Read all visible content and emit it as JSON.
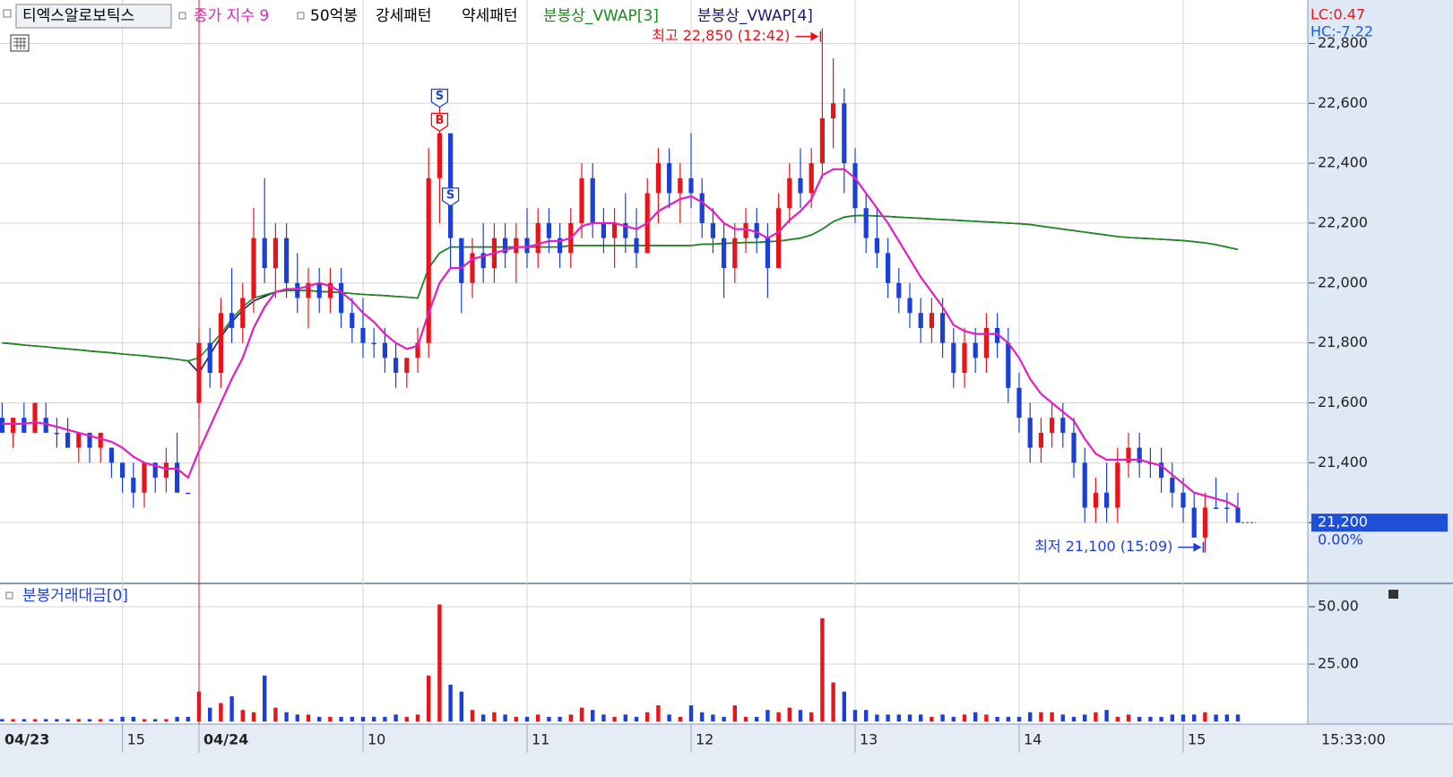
{
  "chart_data": {
    "type": "candlestick",
    "symbol": "티엑스알로보틱스",
    "indicators": [
      "50억봉",
      "강세패턴",
      "약세패턴"
    ],
    "lc_label": "LC:0.47",
    "hc_label": "HC:-7.22",
    "up_color": "#e8141c",
    "down_color": "#1c3fd6",
    "grid": true,
    "categories": [
      "04/23",
      null,
      null,
      null,
      null,
      null,
      null,
      null,
      null,
      null,
      null,
      "15",
      null,
      null,
      null,
      null,
      null,
      null,
      "04/24",
      null,
      null,
      null,
      null,
      null,
      null,
      null,
      null,
      null,
      null,
      null,
      null,
      null,
      null,
      "10",
      null,
      null,
      null,
      null,
      null,
      null,
      null,
      null,
      null,
      null,
      null,
      null,
      null,
      null,
      "11",
      null,
      null,
      null,
      null,
      null,
      null,
      null,
      null,
      null,
      null,
      null,
      null,
      null,
      null,
      "12",
      null,
      null,
      null,
      null,
      null,
      null,
      null,
      null,
      null,
      null,
      null,
      null,
      null,
      null,
      "13",
      null,
      null,
      null,
      null,
      null,
      null,
      null,
      null,
      null,
      null,
      null,
      null,
      null,
      null,
      "14",
      null,
      null,
      null,
      null,
      null,
      null,
      null,
      null,
      null,
      null,
      null,
      null,
      null,
      null,
      "15",
      null,
      null,
      null,
      null,
      null
    ],
    "ohlc": [
      [
        21550,
        21600,
        21500,
        21500
      ],
      [
        21500,
        21550,
        21450,
        21550
      ],
      [
        21550,
        21600,
        21500,
        21500
      ],
      [
        21500,
        21600,
        21500,
        21600
      ],
      [
        21550,
        21600,
        21500,
        21500
      ],
      [
        21500,
        21550,
        21450,
        21500
      ],
      [
        21500,
        21550,
        21450,
        21450
      ],
      [
        21450,
        21500,
        21400,
        21500
      ],
      [
        21500,
        21500,
        21400,
        21450
      ],
      [
        21450,
        21500,
        21400,
        21500
      ],
      [
        21450,
        21450,
        21350,
        21400
      ],
      [
        21400,
        21400,
        21300,
        21350
      ],
      [
        21350,
        21400,
        21250,
        21300
      ],
      [
        21300,
        21400,
        21250,
        21400
      ],
      [
        21400,
        21400,
        21300,
        21350
      ],
      [
        21350,
        21450,
        21300,
        21400
      ],
      [
        21400,
        21500,
        21300,
        21300
      ],
      [
        21300,
        21300,
        21300,
        21300
      ],
      [
        21600,
        21850,
        21550,
        21800
      ],
      [
        21800,
        21850,
        21650,
        21700
      ],
      [
        21700,
        21950,
        21650,
        21900
      ],
      [
        21900,
        22050,
        21800,
        21850
      ],
      [
        21850,
        22000,
        21800,
        21950
      ],
      [
        21950,
        22250,
        21900,
        22150
      ],
      [
        22150,
        22350,
        22000,
        22050
      ],
      [
        22050,
        22200,
        21950,
        22150
      ],
      [
        22150,
        22200,
        21950,
        22000
      ],
      [
        22000,
        22100,
        21900,
        21950
      ],
      [
        21950,
        22050,
        21850,
        22000
      ],
      [
        22000,
        22050,
        21900,
        21950
      ],
      [
        21950,
        22050,
        21900,
        22000
      ],
      [
        22000,
        22050,
        21850,
        21900
      ],
      [
        21900,
        21950,
        21800,
        21850
      ],
      [
        21850,
        21950,
        21750,
        21800
      ],
      [
        21800,
        21850,
        21750,
        21800
      ],
      [
        21800,
        21850,
        21700,
        21750
      ],
      [
        21750,
        21800,
        21650,
        21700
      ],
      [
        21700,
        21750,
        21650,
        21750
      ],
      [
        21750,
        21850,
        21700,
        21800
      ],
      [
        21800,
        22450,
        21750,
        22350
      ],
      [
        22350,
        22650,
        22200,
        22500
      ],
      [
        22500,
        22500,
        22050,
        22150
      ],
      [
        22150,
        22150,
        21900,
        22000
      ],
      [
        22000,
        22150,
        21950,
        22100
      ],
      [
        22100,
        22200,
        22000,
        22050
      ],
      [
        22050,
        22200,
        22000,
        22150
      ],
      [
        22150,
        22200,
        22050,
        22100
      ],
      [
        22100,
        22200,
        22000,
        22150
      ],
      [
        22150,
        22250,
        22050,
        22100
      ],
      [
        22100,
        22250,
        22050,
        22200
      ],
      [
        22200,
        22250,
        22100,
        22150
      ],
      [
        22150,
        22200,
        22050,
        22100
      ],
      [
        22100,
        22250,
        22050,
        22200
      ],
      [
        22200,
        22400,
        22150,
        22350
      ],
      [
        22350,
        22400,
        22150,
        22200
      ],
      [
        22200,
        22250,
        22100,
        22150
      ],
      [
        22150,
        22250,
        22050,
        22200
      ],
      [
        22200,
        22300,
        22100,
        22150
      ],
      [
        22150,
        22250,
        22050,
        22100
      ],
      [
        22100,
        22350,
        22100,
        22300
      ],
      [
        22300,
        22450,
        22200,
        22400
      ],
      [
        22400,
        22450,
        22250,
        22300
      ],
      [
        22300,
        22400,
        22200,
        22350
      ],
      [
        22350,
        22500,
        22250,
        22300
      ],
      [
        22300,
        22350,
        22150,
        22200
      ],
      [
        22200,
        22250,
        22100,
        22150
      ],
      [
        22150,
        22200,
        21950,
        22050
      ],
      [
        22050,
        22200,
        22000,
        22150
      ],
      [
        22150,
        22250,
        22100,
        22200
      ],
      [
        22200,
        22250,
        22100,
        22150
      ],
      [
        22150,
        22200,
        21950,
        22050
      ],
      [
        22050,
        22300,
        22050,
        22250
      ],
      [
        22250,
        22400,
        22200,
        22350
      ],
      [
        22350,
        22450,
        22250,
        22300
      ],
      [
        22300,
        22450,
        22250,
        22400
      ],
      [
        22400,
        22850,
        22350,
        22550
      ],
      [
        22550,
        22750,
        22450,
        22600
      ],
      [
        22600,
        22650,
        22300,
        22400
      ],
      [
        22400,
        22450,
        22200,
        22250
      ],
      [
        22250,
        22300,
        22100,
        22150
      ],
      [
        22150,
        22250,
        22050,
        22100
      ],
      [
        22100,
        22150,
        21950,
        22000
      ],
      [
        22000,
        22050,
        21900,
        21950
      ],
      [
        21950,
        22000,
        21850,
        21900
      ],
      [
        21900,
        21950,
        21800,
        21850
      ],
      [
        21850,
        21950,
        21800,
        21900
      ],
      [
        21900,
        21950,
        21750,
        21800
      ],
      [
        21800,
        21850,
        21650,
        21700
      ],
      [
        21700,
        21850,
        21650,
        21800
      ],
      [
        21800,
        21850,
        21700,
        21750
      ],
      [
        21750,
        21900,
        21700,
        21850
      ],
      [
        21850,
        21900,
        21750,
        21800
      ],
      [
        21800,
        21850,
        21600,
        21650
      ],
      [
        21650,
        21700,
        21500,
        21550
      ],
      [
        21550,
        21600,
        21400,
        21450
      ],
      [
        21450,
        21550,
        21400,
        21500
      ],
      [
        21500,
        21600,
        21450,
        21550
      ],
      [
        21550,
        21600,
        21450,
        21500
      ],
      [
        21500,
        21550,
        21350,
        21400
      ],
      [
        21400,
        21450,
        21200,
        21250
      ],
      [
        21250,
        21350,
        21200,
        21300
      ],
      [
        21300,
        21400,
        21200,
        21250
      ],
      [
        21250,
        21450,
        21200,
        21400
      ],
      [
        21400,
        21500,
        21350,
        21450
      ],
      [
        21450,
        21500,
        21350,
        21400
      ],
      [
        21400,
        21450,
        21350,
        21400
      ],
      [
        21400,
        21450,
        21300,
        21350
      ],
      [
        21350,
        21400,
        21250,
        21300
      ],
      [
        21300,
        21350,
        21200,
        21250
      ],
      [
        21250,
        21300,
        21150,
        21150
      ],
      [
        21150,
        21300,
        21100,
        21250
      ],
      [
        21250,
        21350,
        21250,
        21250
      ],
      [
        21250,
        21300,
        21200,
        21250
      ],
      [
        21250,
        21300,
        21200,
        21200
      ]
    ],
    "series": [
      {
        "name": "종가 지수 9",
        "color": "#e020c0",
        "values": [
          21530,
          21530,
          21530,
          21535,
          21530,
          21520,
          21510,
          21500,
          21490,
          21480,
          21470,
          21450,
          21420,
          21400,
          21390,
          21380,
          21380,
          21350,
          21440,
          21520,
          21600,
          21680,
          21750,
          21850,
          21920,
          21970,
          21980,
          21980,
          21990,
          22000,
          21990,
          21970,
          21940,
          21900,
          21870,
          21830,
          21800,
          21780,
          21790,
          21900,
          22000,
          22050,
          22050,
          22080,
          22090,
          22100,
          22110,
          22120,
          22120,
          22130,
          22140,
          22140,
          22150,
          22190,
          22200,
          22200,
          22200,
          22190,
          22180,
          22200,
          22240,
          22260,
          22280,
          22290,
          22270,
          22240,
          22200,
          22180,
          22180,
          22170,
          22150,
          22170,
          22210,
          22240,
          22280,
          22360,
          22380,
          22380,
          22350,
          22300,
          22250,
          22200,
          22140,
          22080,
          22020,
          21970,
          21920,
          21860,
          21840,
          21830,
          21830,
          21830,
          21800,
          21750,
          21680,
          21630,
          21600,
          21570,
          21540,
          21480,
          21430,
          21410,
          21410,
          21410,
          21410,
          21400,
          21390,
          21360,
          21330,
          21300,
          21290,
          21280,
          21270,
          21250
        ]
      },
      {
        "name": "분봉상_VWAP[3]",
        "color": "#1b8a1b",
        "values": [
          21800,
          21797,
          21793,
          21790,
          21787,
          21783,
          21780,
          21777,
          21773,
          21770,
          21767,
          21763,
          21760,
          21757,
          21753,
          21750,
          21745,
          21740,
          21750,
          21790,
          21830,
          21880,
          21920,
          21950,
          21960,
          21970,
          21975,
          21975,
          21975,
          21972,
          21970,
          21968,
          21965,
          21962,
          21960,
          21958,
          21955,
          21953,
          21950,
          22050,
          22100,
          22120,
          22120,
          22120,
          22120,
          22120,
          22120,
          22120,
          22120,
          22120,
          22120,
          22120,
          22125,
          22125,
          22125,
          22125,
          22125,
          22125,
          22125,
          22125,
          22125,
          22125,
          22125,
          22125,
          22130,
          22130,
          22132,
          22134,
          22135,
          22136,
          22138,
          22140,
          22145,
          22150,
          22160,
          22180,
          22205,
          22220,
          22225,
          22225,
          22224,
          22222,
          22220,
          22218,
          22216,
          22214,
          22212,
          22210,
          22208,
          22206,
          22204,
          22202,
          22200,
          22198,
          22195,
          22190,
          22185,
          22180,
          22175,
          22170,
          22165,
          22160,
          22155,
          22152,
          22150,
          22148,
          22146,
          22144,
          22142,
          22138,
          22134,
          22128,
          22120,
          22112
        ]
      },
      {
        "name": "분봉상_VWAP[4]",
        "color": "#1a1a6e",
        "values": [
          21800,
          21797,
          21793,
          21790,
          21787,
          21783,
          21780,
          21777,
          21773,
          21770,
          21767,
          21763,
          21760,
          21757,
          21753,
          21750,
          21745,
          21740,
          21700,
          21760,
          21820,
          21870,
          21910,
          21940,
          21955,
          21970,
          21975,
          21975,
          21975,
          21972,
          21970,
          21968,
          21965,
          21962,
          21960,
          21958,
          21955,
          21953,
          21950,
          22050,
          22100,
          22120,
          22120,
          22120,
          22120,
          22120,
          22120,
          22120,
          22120,
          22120,
          22120,
          22120,
          22125,
          22125,
          22125,
          22125,
          22125,
          22125,
          22125,
          22125,
          22125,
          22125,
          22125,
          22125,
          22130,
          22130,
          22132,
          22134,
          22135,
          22136,
          22138,
          22140,
          22145,
          22150,
          22160,
          22180,
          22205,
          22220,
          22225,
          22225,
          22224,
          22222,
          22220,
          22218,
          22216,
          22214,
          22212,
          22210,
          22208,
          22206,
          22204,
          22202,
          22200,
          22198,
          22195,
          22190,
          22185,
          22180,
          22175,
          22170,
          22165,
          22160,
          22155,
          22152,
          22150,
          22148,
          22146,
          22144,
          22142,
          22138,
          22134,
          22128,
          22120,
          22112
        ]
      }
    ],
    "ylim": [
      21000,
      22945
    ],
    "yticks": [
      {
        "value": 21200,
        "label": "21,200"
      },
      {
        "value": 21400,
        "label": "21,400"
      },
      {
        "value": 21600,
        "label": "21,600"
      },
      {
        "value": 21800,
        "label": "21,800"
      },
      {
        "value": 22000,
        "label": "22,000"
      },
      {
        "value": 22200,
        "label": "22,200"
      },
      {
        "value": 22400,
        "label": "22,400"
      },
      {
        "value": 22600,
        "label": "22,600"
      },
      {
        "value": 22800,
        "label": "22,800"
      }
    ],
    "last_price": {
      "value": 21200,
      "label": "21,200"
    },
    "change_label": "0.00%",
    "annotations": [
      {
        "label": "최고 22,850 (12:42)",
        "value": 22850
      },
      {
        "label": "최저 21,100 (15:09)",
        "value": 21100
      }
    ],
    "signals": [
      {
        "label": "S",
        "value": 22620,
        "category": 40
      },
      {
        "label": "B",
        "value": 22540,
        "category": 40
      },
      {
        "label": "S",
        "value": 22290,
        "category": 41
      }
    ],
    "volume": {
      "title": "분봉거래대금[0]",
      "values": [
        1,
        1,
        1,
        1,
        1,
        1,
        1,
        1,
        1,
        1,
        1,
        2,
        2,
        1,
        1,
        1,
        2,
        2,
        13,
        6,
        8,
        11,
        5,
        4,
        20,
        6,
        4,
        3,
        3,
        2,
        2,
        2,
        2,
        2,
        2,
        2,
        3,
        2,
        3,
        20,
        51,
        16,
        13,
        5,
        3,
        4,
        3,
        2,
        2,
        3,
        2,
        2,
        3,
        6,
        5,
        3,
        2,
        3,
        2,
        4,
        7,
        3,
        2,
        7,
        4,
        3,
        2,
        7,
        2,
        2,
        5,
        4,
        6,
        5,
        4,
        45,
        17,
        13,
        5,
        5,
        3,
        3,
        3,
        3,
        3,
        2,
        3,
        2,
        3,
        4,
        3,
        2,
        2,
        2,
        4,
        4,
        4,
        3,
        2,
        3,
        4,
        5,
        2,
        3,
        2,
        2,
        2,
        3,
        3,
        3,
        4,
        3,
        3,
        3
      ],
      "ylim": [
        0,
        58.6
      ],
      "yticks": [
        {
          "value": 25,
          "label": "25.00"
        },
        {
          "value": 50,
          "label": "50.00"
        }
      ]
    },
    "time_label": "15:33:00"
  }
}
